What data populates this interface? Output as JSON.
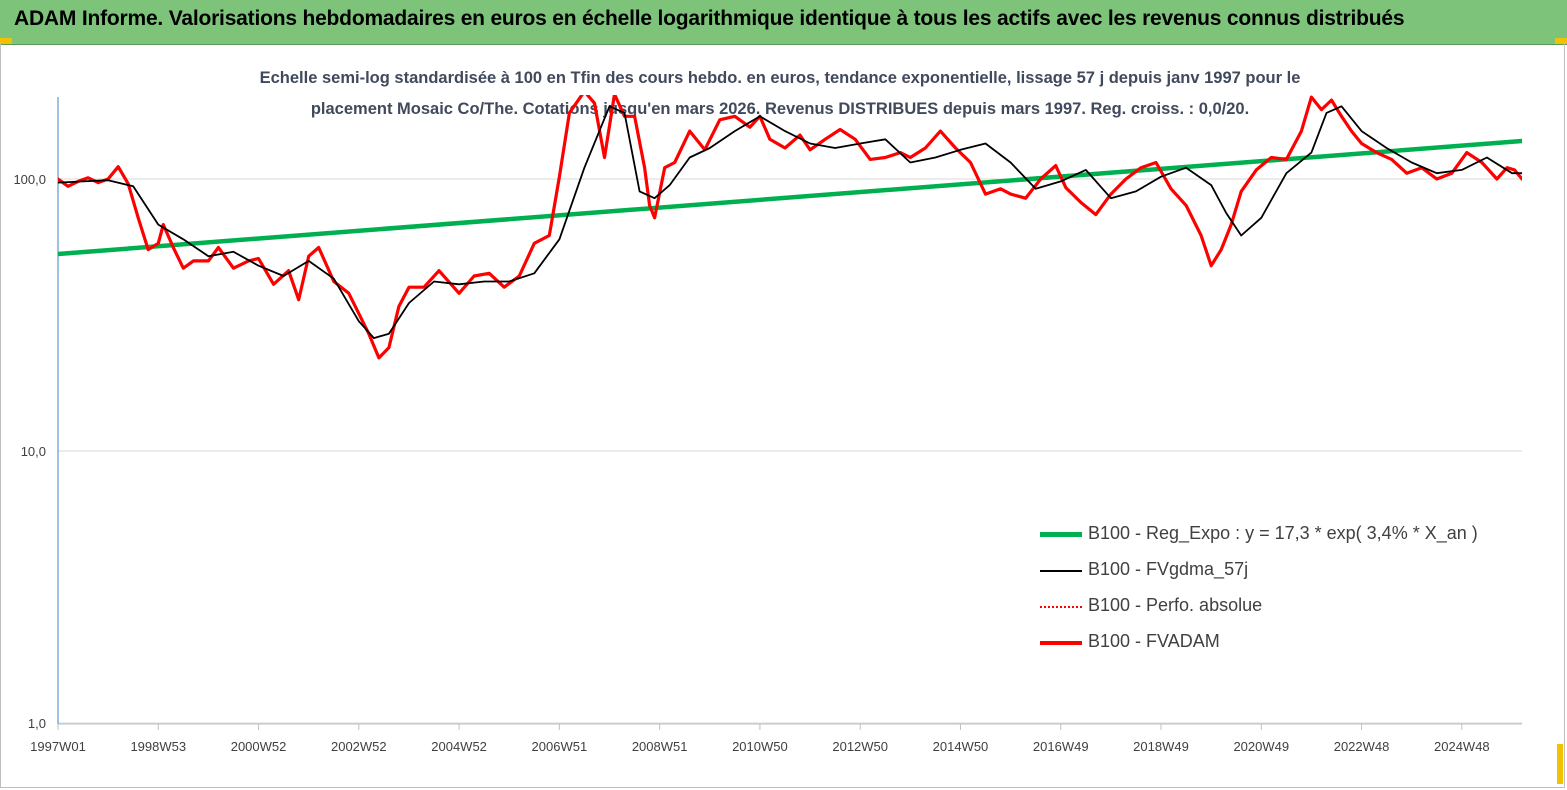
{
  "header": {
    "title": "ADAM Informe. Valorisations hebdomadaires en euros en échelle logarithmique identique à tous les actifs avec les revenus connus distribués"
  },
  "subtitle": {
    "line1": "Echelle semi-log standardisée à 100 en Tfin des cours hebdo. en euros, tendance exponentielle, lissage 57 j depuis janv 1997 pour le",
    "line2": "placement Mosaic Co/The. Cotations jusqu'en mars 2026. Revenus DISTRIBUES depuis mars 1997. Reg. croiss. : 0,0/20."
  },
  "colors": {
    "banner": "#7dc47a",
    "reg_expo": "#00b050",
    "fvgdma": "#000000",
    "perfo": "#ff0000",
    "fvadam": "#ff0000",
    "grid": "#d9d9d9",
    "axis": "#5b9bd5"
  },
  "chart_data": {
    "type": "line",
    "y_scale": "log",
    "ylim": [
      1,
      200
    ],
    "y_ticks": [
      {
        "value": 1,
        "label": "1,0"
      },
      {
        "value": 10,
        "label": "10,0"
      },
      {
        "value": 100,
        "label": "100,0"
      }
    ],
    "x_range": [
      1997.0,
      2026.2
    ],
    "x_ticks": [
      {
        "x": 1997.0,
        "label": "1997W01"
      },
      {
        "x": 1999.0,
        "label": "1998W53"
      },
      {
        "x": 2001.0,
        "label": "2000W52"
      },
      {
        "x": 2003.0,
        "label": "2002W52"
      },
      {
        "x": 2005.0,
        "label": "2004W52"
      },
      {
        "x": 2007.0,
        "label": "2006W51"
      },
      {
        "x": 2009.0,
        "label": "2008W51"
      },
      {
        "x": 2011.0,
        "label": "2010W50"
      },
      {
        "x": 2013.0,
        "label": "2012W50"
      },
      {
        "x": 2015.0,
        "label": "2014W50"
      },
      {
        "x": 2017.0,
        "label": "2016W49"
      },
      {
        "x": 2019.0,
        "label": "2018W49"
      },
      {
        "x": 2021.0,
        "label": "2020W49"
      },
      {
        "x": 2023.0,
        "label": "2022W48"
      },
      {
        "x": 2025.0,
        "label": "2024W48"
      }
    ],
    "legend": "bottom-right",
    "series": [
      {
        "name": "B100 - Reg_Expo : y = 17,3 * exp( 3,4% *  X_an )",
        "style": "thick-green",
        "x": [
          1997.0,
          2026.2
        ],
        "y": [
          53,
          138
        ]
      },
      {
        "name": "B100 - FVgdma_57j",
        "style": "thin-black",
        "x": [
          1997.0,
          1997.5,
          1998.0,
          1998.5,
          1999.0,
          1999.5,
          2000.0,
          2000.5,
          2001.0,
          2001.5,
          2002.0,
          2002.5,
          2003.0,
          2003.3,
          2003.6,
          2004.0,
          2004.5,
          2005.0,
          2005.5,
          2006.0,
          2006.5,
          2007.0,
          2007.5,
          2008.0,
          2008.3,
          2008.6,
          2008.9,
          2009.2,
          2009.6,
          2010.0,
          2010.5,
          2011.0,
          2011.5,
          2012.0,
          2012.5,
          2013.0,
          2013.5,
          2014.0,
          2014.5,
          2015.0,
          2015.5,
          2016.0,
          2016.5,
          2017.0,
          2017.5,
          2018.0,
          2018.5,
          2019.0,
          2019.5,
          2020.0,
          2020.3,
          2020.6,
          2021.0,
          2021.5,
          2022.0,
          2022.3,
          2022.6,
          2023.0,
          2023.5,
          2024.0,
          2024.5,
          2025.0,
          2025.5,
          2026.0,
          2026.2
        ],
        "y": [
          97,
          98,
          99,
          94,
          68,
          60,
          52,
          54,
          48,
          44,
          50,
          43,
          30,
          26,
          27,
          35,
          42,
          41,
          42,
          42,
          45,
          60,
          110,
          185,
          175,
          90,
          85,
          95,
          120,
          130,
          150,
          170,
          150,
          135,
          130,
          135,
          140,
          115,
          120,
          128,
          135,
          115,
          92,
          98,
          108,
          85,
          90,
          102,
          110,
          95,
          75,
          62,
          72,
          105,
          125,
          175,
          185,
          150,
          130,
          115,
          105,
          108,
          120,
          105,
          105
        ]
      },
      {
        "name": "B100 - Perfo. absolue",
        "style": "dotted-red",
        "x": [],
        "y": []
      },
      {
        "name": "B100 - FVADAM",
        "style": "thick-red",
        "x": [
          1997.0,
          1997.2,
          1997.4,
          1997.6,
          1997.8,
          1998.0,
          1998.2,
          1998.4,
          1998.6,
          1998.8,
          1999.0,
          1999.1,
          1999.3,
          1999.5,
          1999.7,
          2000.0,
          2000.2,
          2000.5,
          2000.8,
          2001.0,
          2001.3,
          2001.6,
          2001.8,
          2002.0,
          2002.2,
          2002.5,
          2002.8,
          2003.0,
          2003.2,
          2003.4,
          2003.6,
          2003.8,
          2004.0,
          2004.3,
          2004.6,
          2005.0,
          2005.3,
          2005.6,
          2005.9,
          2006.2,
          2006.5,
          2006.8,
          2007.0,
          2007.2,
          2007.5,
          2007.7,
          2007.9,
          2008.1,
          2008.3,
          2008.5,
          2008.7,
          2008.8,
          2008.9,
          2009.1,
          2009.3,
          2009.6,
          2009.9,
          2010.2,
          2010.5,
          2010.8,
          2011.0,
          2011.2,
          2011.5,
          2011.8,
          2012.0,
          2012.3,
          2012.6,
          2012.9,
          2013.2,
          2013.5,
          2013.8,
          2014.0,
          2014.3,
          2014.6,
          2014.9,
          2015.2,
          2015.5,
          2015.8,
          2016.0,
          2016.3,
          2016.6,
          2016.9,
          2017.1,
          2017.4,
          2017.7,
          2018.0,
          2018.3,
          2018.6,
          2018.9,
          2019.2,
          2019.5,
          2019.8,
          2020.0,
          2020.2,
          2020.4,
          2020.6,
          2020.9,
          2021.2,
          2021.5,
          2021.8,
          2022.0,
          2022.2,
          2022.4,
          2022.6,
          2022.8,
          2023.0,
          2023.3,
          2023.6,
          2023.9,
          2024.2,
          2024.5,
          2024.8,
          2025.1,
          2025.4,
          2025.7,
          2025.9,
          2026.05,
          2026.2
        ],
        "y": [
          100,
          94,
          98,
          101,
          97,
          100,
          111,
          96,
          72,
          55,
          58,
          68,
          56,
          47,
          50,
          50,
          56,
          47,
          50,
          51,
          41,
          46,
          36,
          52,
          56,
          42,
          38,
          32,
          27,
          22,
          24,
          34,
          40,
          40,
          46,
          38,
          44,
          45,
          40,
          44,
          58,
          62,
          102,
          175,
          210,
          190,
          120,
          205,
          170,
          170,
          110,
          80,
          72,
          110,
          115,
          150,
          128,
          165,
          170,
          155,
          170,
          140,
          130,
          145,
          128,
          140,
          152,
          140,
          118,
          120,
          125,
          120,
          130,
          150,
          130,
          115,
          88,
          92,
          88,
          85,
          100,
          112,
          93,
          82,
          74,
          88,
          100,
          110,
          115,
          92,
          80,
          62,
          48,
          55,
          68,
          90,
          108,
          120,
          118,
          150,
          200,
          180,
          195,
          170,
          150,
          135,
          125,
          118,
          105,
          110,
          100,
          105,
          125,
          115,
          100,
          110,
          108,
          100
        ]
      }
    ]
  },
  "legend_items": [
    {
      "label": "B100 - Reg_Expo : y = 17,3 * exp( 3,4% *  X_an )",
      "style": "thick-green"
    },
    {
      "label": "B100 - FVgdma_57j",
      "style": "thin-black"
    },
    {
      "label": "B100 - Perfo. absolue",
      "style": "dotted-red"
    },
    {
      "label": "B100 - FVADAM",
      "style": "thick-red"
    }
  ]
}
